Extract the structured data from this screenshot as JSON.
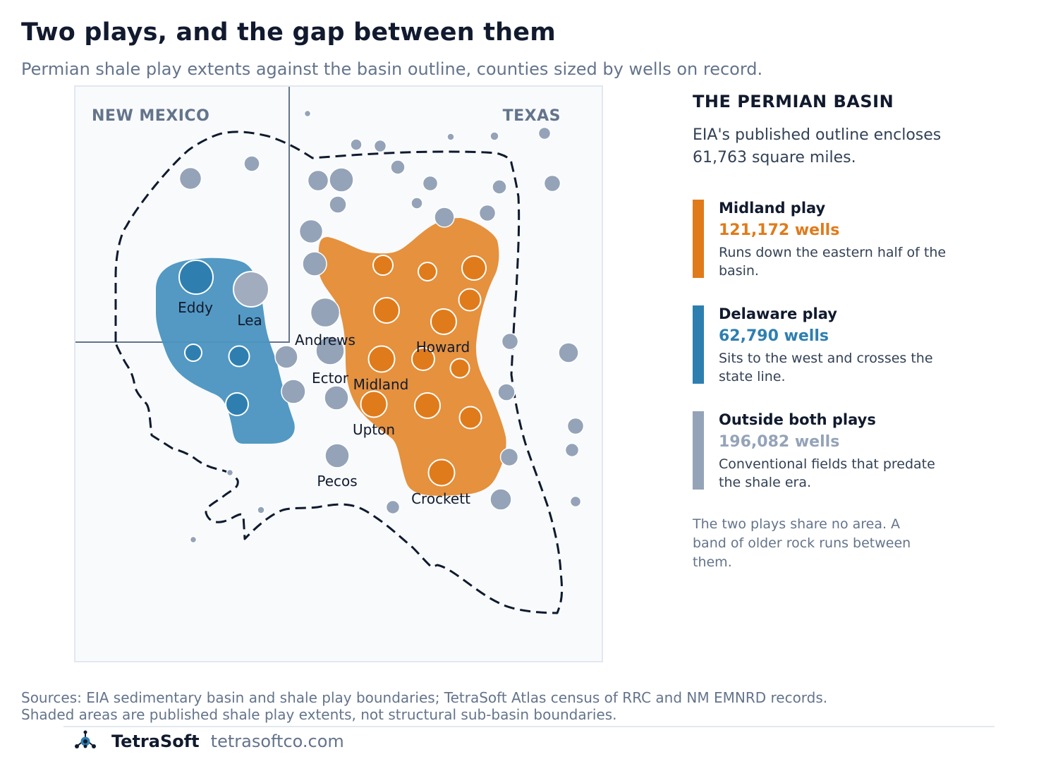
{
  "header": {
    "title": "Two plays, and the gap between them",
    "subtitle": "Permian shale play extents against the basin outline, counties sized by wells on record."
  },
  "map": {
    "state_labels": {
      "new_mexico": "NEW MEXICO",
      "texas": "TEXAS"
    },
    "county_labels": {
      "eddy": "Eddy",
      "lea": "Lea",
      "andrews": "Andrews",
      "ector": "Ector",
      "midland": "Midland",
      "howard": "Howard",
      "upton": "Upton",
      "pecos": "Pecos",
      "crockett": "Crockett"
    }
  },
  "panel": {
    "heading": "THE PERMIAN BASIN",
    "description": "EIA's published outline encloses 61,763 square miles.",
    "legend": [
      {
        "name": "Midland play",
        "count": "121,172 wells",
        "note": "Runs down the eastern half of the basin.",
        "color": "#e07b1b"
      },
      {
        "name": "Delaware play",
        "count": "62,790 wells",
        "note": "Sits to the west and crosses the state line.",
        "color": "#2e7fb0"
      },
      {
        "name": "Outside both plays",
        "count": "196,082 wells",
        "note": "Conventional fields that predate the shale era.",
        "color": "#94a3b8"
      }
    ],
    "footnote": "The two plays share no area. A band of older rock runs between them."
  },
  "footer": {
    "sources_line1": "Sources: EIA sedimentary basin and shale play boundaries; TetraSoft Atlas census of RRC and NM EMNRD records.",
    "sources_line2": "Shaded areas are published shale play extents, not structural sub-basin boundaries.",
    "brand_name": "TetraSoft",
    "brand_url": "tetrasoftco.com",
    "logo_icon": "tetrasoft-logo-icon"
  },
  "colors": {
    "midland": "#e07b1b",
    "delaware": "#2e7fb0",
    "outside": "#94a3b8",
    "basin_outline": "#0f1a2e"
  }
}
